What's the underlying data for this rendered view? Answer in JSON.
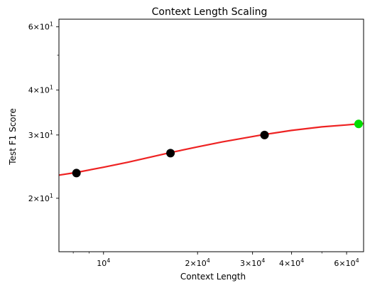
{
  "chart_data": {
    "type": "scatter",
    "title": "Context Length Scaling",
    "xlabel": "Context Length",
    "ylabel": "Test F1 Score",
    "xscale": "log",
    "yscale": "log",
    "xlim": [
      7200,
      68000
    ],
    "ylim": [
      14.2,
      63
    ],
    "grid": false,
    "points": [
      {
        "x": 8192,
        "y": 23.5,
        "color": "#000000"
      },
      {
        "x": 16384,
        "y": 26.7,
        "color": "#000000"
      },
      {
        "x": 32768,
        "y": 30.0,
        "color": "#000000"
      },
      {
        "x": 65536,
        "y": 32.2,
        "color": "#00dd00"
      }
    ],
    "fit_curve": {
      "color": "#ee2222",
      "points": [
        [
          7200,
          23.2
        ],
        [
          8192,
          23.6
        ],
        [
          10000,
          24.4
        ],
        [
          12000,
          25.2
        ],
        [
          16384,
          26.8
        ],
        [
          20000,
          27.8
        ],
        [
          24000,
          28.7
        ],
        [
          32768,
          30.1
        ],
        [
          40000,
          30.9
        ],
        [
          50000,
          31.6
        ],
        [
          60000,
          32.0
        ],
        [
          68000,
          32.3
        ]
      ]
    },
    "x_ticks": [
      {
        "value": 10000,
        "label": "10^4"
      },
      {
        "value": 20000,
        "label": "2×10^4"
      },
      {
        "value": 30000,
        "label": "3×10^4"
      },
      {
        "value": 40000,
        "label": "4×10^4"
      },
      {
        "value": 60000,
        "label": "6×10^4"
      }
    ],
    "y_ticks": [
      {
        "value": 20,
        "label": "2×10^1"
      },
      {
        "value": 30,
        "label": "3×10^1"
      },
      {
        "value": 40,
        "label": "4×10^1"
      },
      {
        "value": 60,
        "label": "6×10^1"
      }
    ]
  }
}
